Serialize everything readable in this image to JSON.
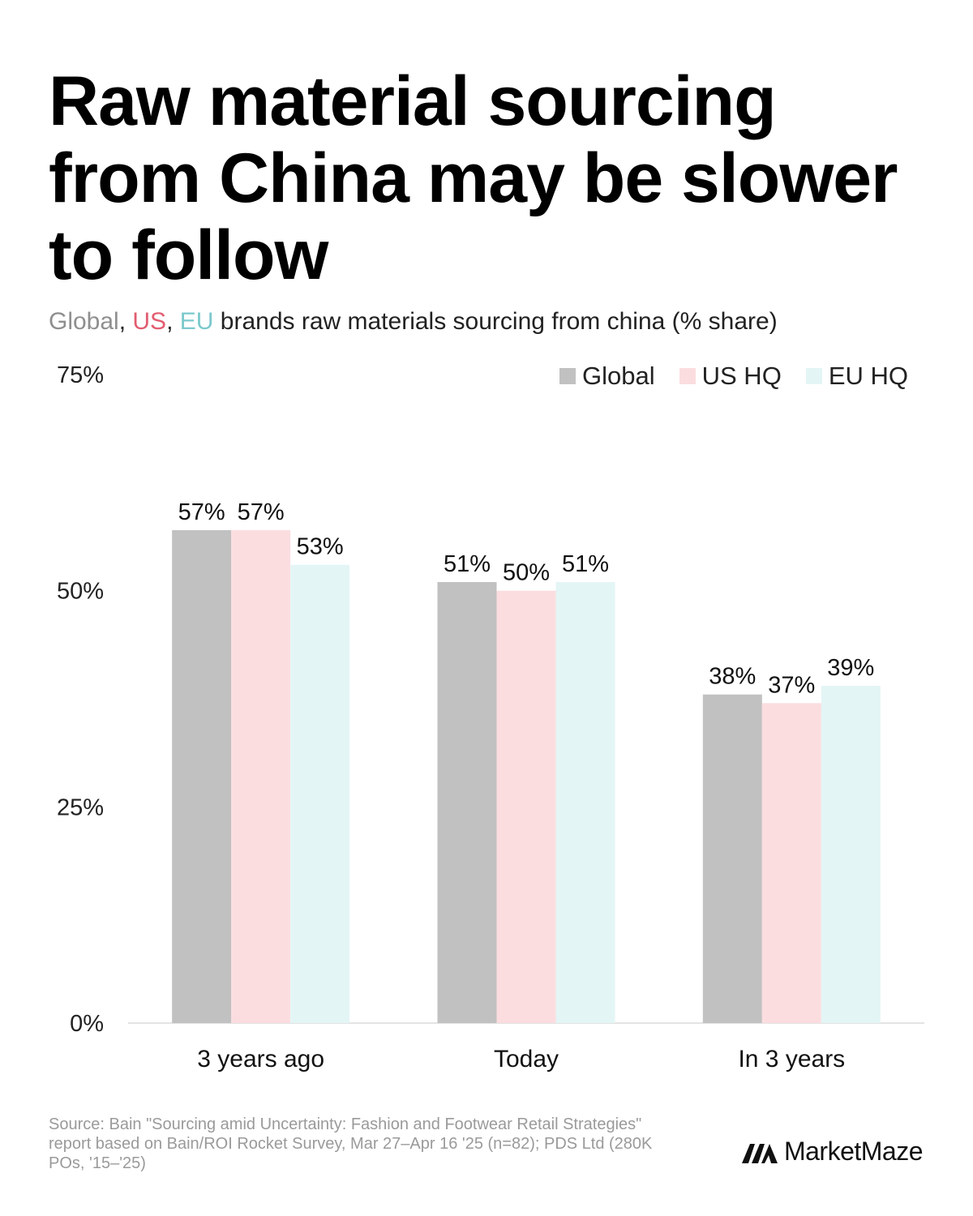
{
  "title": "Raw material sourcing from China may be slower to follow",
  "subtitle": {
    "parts": [
      {
        "text": "Global",
        "color": "#8f8f8f"
      },
      {
        "text": ", ",
        "color": "#222222"
      },
      {
        "text": "US",
        "color": "#e25d70"
      },
      {
        "text": ", ",
        "color": "#222222"
      },
      {
        "text": "EU",
        "color": "#7cc9cc"
      },
      {
        "text": " brands raw materials sourcing from china (% share)",
        "color": "#222222"
      }
    ]
  },
  "chart_data": {
    "type": "bar",
    "categories": [
      "3 years ago",
      "Today",
      "In 3 years"
    ],
    "series": [
      {
        "name": "Global",
        "color": "#c1c1c1",
        "values": [
          57,
          51,
          38
        ],
        "labels": [
          "57%",
          "51%",
          "38%"
        ]
      },
      {
        "name": "US HQ",
        "color": "#fbdde0",
        "values": [
          57,
          50,
          37
        ],
        "labels": [
          "57%",
          "50%",
          "37%"
        ]
      },
      {
        "name": "EU HQ",
        "color": "#e4f5f5",
        "values": [
          53,
          51,
          39
        ],
        "labels": [
          "53%",
          "51%",
          "39%"
        ]
      }
    ],
    "ylim": [
      0,
      75
    ],
    "yticks": [
      0,
      25,
      50,
      75
    ],
    "ytick_labels": [
      "0%",
      "25%",
      "50%",
      "75%"
    ],
    "legend_position": "top-right",
    "grid": false
  },
  "footer": {
    "source": "Source: Bain \"Sourcing amid Uncertainty: Fashion and Footwear Retail Strategies\" report based on Bain/ROI Rocket Survey, Mar 27–Apr 16 '25 (n=82); PDS Ltd (280K POs, '15–'25)",
    "brand": "MarketMaze",
    "brand_icon": "marketmaze-logo-icon"
  }
}
